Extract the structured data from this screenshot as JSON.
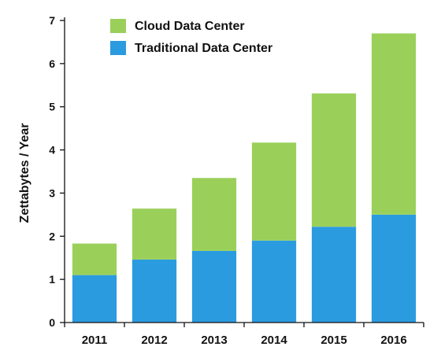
{
  "chart_data": {
    "type": "bar",
    "stacked": true,
    "categories": [
      "2011",
      "2012",
      "2013",
      "2014",
      "2015",
      "2016"
    ],
    "series": [
      {
        "name": "Traditional Data Center",
        "color": "#2b9be0",
        "values": [
          1.1,
          1.46,
          1.66,
          1.9,
          2.22,
          2.5
        ]
      },
      {
        "name": "Cloud Data Center",
        "color": "#9ad05a",
        "values": [
          0.73,
          1.18,
          1.69,
          2.27,
          3.09,
          4.2
        ]
      }
    ],
    "ylabel": "Zettabytes / Year",
    "xlabel": "",
    "ylim": [
      0,
      7
    ],
    "yticks": [
      "0",
      "1",
      "2",
      "3",
      "4",
      "5",
      "6",
      "7"
    ],
    "grid": false,
    "legend_position": "top-left",
    "legend_order": [
      "Cloud Data Center",
      "Traditional Data Center"
    ]
  }
}
